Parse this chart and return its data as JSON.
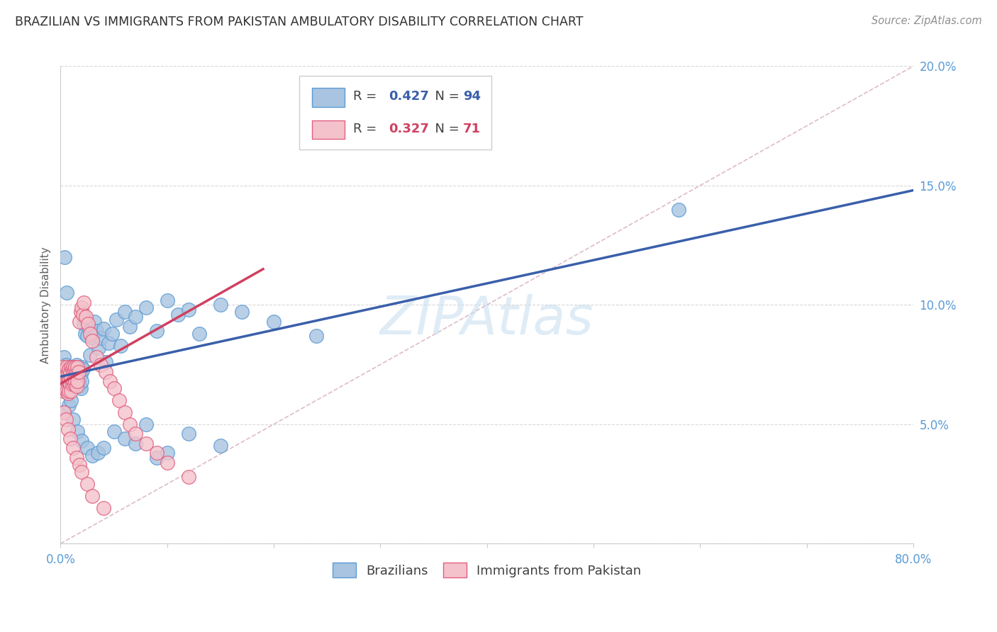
{
  "title": "BRAZILIAN VS IMMIGRANTS FROM PAKISTAN AMBULATORY DISABILITY CORRELATION CHART",
  "source": "Source: ZipAtlas.com",
  "ylabel": "Ambulatory Disability",
  "watermark": "ZIPAtlas",
  "xlim": [
    0.0,
    0.8
  ],
  "ylim": [
    0.0,
    0.2
  ],
  "yticks": [
    0.0,
    0.05,
    0.1,
    0.15,
    0.2
  ],
  "ytick_labels": [
    "",
    "5.0%",
    "10.0%",
    "15.0%",
    "20.0%"
  ],
  "xticks": [
    0.0,
    0.1,
    0.2,
    0.3,
    0.4,
    0.5,
    0.6,
    0.7,
    0.8
  ],
  "xtick_labels": [
    "0.0%",
    "",
    "",
    "",
    "",
    "",
    "",
    "",
    "80.0%"
  ],
  "blue_R": 0.427,
  "blue_N": 94,
  "pink_R": 0.327,
  "pink_N": 71,
  "blue_color": "#a8c4e0",
  "blue_edge": "#5b9bd5",
  "pink_color": "#f4c2cb",
  "pink_edge": "#e06080",
  "blue_line_color": "#3a5faa",
  "pink_line_color": "#d04060",
  "diag_color": "#ddbbcc",
  "title_color": "#303030",
  "axis_color": "#5b9bd5",
  "grid_color": "#d8d8d8",
  "blue_scatter_x": [
    0.002,
    0.003,
    0.003,
    0.004,
    0.004,
    0.005,
    0.005,
    0.005,
    0.006,
    0.006,
    0.006,
    0.007,
    0.007,
    0.007,
    0.008,
    0.008,
    0.008,
    0.009,
    0.009,
    0.01,
    0.01,
    0.01,
    0.011,
    0.011,
    0.012,
    0.012,
    0.013,
    0.013,
    0.014,
    0.014,
    0.015,
    0.015,
    0.016,
    0.016,
    0.017,
    0.017,
    0.018,
    0.018,
    0.019,
    0.019,
    0.02,
    0.02,
    0.021,
    0.022,
    0.023,
    0.024,
    0.025,
    0.026,
    0.028,
    0.03,
    0.032,
    0.034,
    0.036,
    0.038,
    0.04,
    0.042,
    0.045,
    0.048,
    0.052,
    0.056,
    0.06,
    0.065,
    0.07,
    0.08,
    0.09,
    0.1,
    0.11,
    0.12,
    0.13,
    0.15,
    0.17,
    0.2,
    0.24,
    0.003,
    0.008,
    0.012,
    0.016,
    0.02,
    0.025,
    0.03,
    0.035,
    0.04,
    0.05,
    0.06,
    0.07,
    0.08,
    0.09,
    0.1,
    0.12,
    0.15,
    0.58,
    0.004,
    0.006,
    0.01
  ],
  "blue_scatter_y": [
    0.074,
    0.078,
    0.071,
    0.069,
    0.072,
    0.075,
    0.068,
    0.065,
    0.073,
    0.07,
    0.066,
    0.074,
    0.068,
    0.063,
    0.072,
    0.067,
    0.071,
    0.069,
    0.065,
    0.074,
    0.07,
    0.066,
    0.072,
    0.068,
    0.073,
    0.069,
    0.074,
    0.068,
    0.072,
    0.066,
    0.075,
    0.069,
    0.073,
    0.067,
    0.074,
    0.068,
    0.072,
    0.066,
    0.071,
    0.065,
    0.074,
    0.068,
    0.073,
    0.092,
    0.088,
    0.094,
    0.087,
    0.091,
    0.079,
    0.086,
    0.093,
    0.089,
    0.082,
    0.086,
    0.09,
    0.076,
    0.084,
    0.088,
    0.094,
    0.083,
    0.097,
    0.091,
    0.095,
    0.099,
    0.089,
    0.102,
    0.096,
    0.098,
    0.088,
    0.1,
    0.097,
    0.093,
    0.087,
    0.055,
    0.058,
    0.052,
    0.047,
    0.043,
    0.04,
    0.037,
    0.038,
    0.04,
    0.047,
    0.044,
    0.042,
    0.05,
    0.036,
    0.038,
    0.046,
    0.041,
    0.14,
    0.12,
    0.105,
    0.06
  ],
  "pink_scatter_x": [
    0.002,
    0.002,
    0.003,
    0.003,
    0.003,
    0.004,
    0.004,
    0.004,
    0.005,
    0.005,
    0.005,
    0.006,
    0.006,
    0.006,
    0.007,
    0.007,
    0.007,
    0.008,
    0.008,
    0.008,
    0.009,
    0.009,
    0.01,
    0.01,
    0.01,
    0.011,
    0.011,
    0.012,
    0.012,
    0.013,
    0.013,
    0.014,
    0.014,
    0.015,
    0.015,
    0.016,
    0.016,
    0.017,
    0.018,
    0.019,
    0.02,
    0.021,
    0.022,
    0.024,
    0.026,
    0.028,
    0.03,
    0.034,
    0.038,
    0.042,
    0.046,
    0.05,
    0.055,
    0.06,
    0.065,
    0.07,
    0.08,
    0.09,
    0.1,
    0.12,
    0.003,
    0.005,
    0.007,
    0.009,
    0.012,
    0.015,
    0.018,
    0.02,
    0.025,
    0.03,
    0.04
  ],
  "pink_scatter_y": [
    0.074,
    0.069,
    0.072,
    0.067,
    0.064,
    0.071,
    0.068,
    0.065,
    0.073,
    0.07,
    0.066,
    0.074,
    0.068,
    0.064,
    0.072,
    0.068,
    0.063,
    0.073,
    0.068,
    0.064,
    0.072,
    0.067,
    0.074,
    0.069,
    0.064,
    0.073,
    0.067,
    0.074,
    0.068,
    0.073,
    0.067,
    0.074,
    0.068,
    0.072,
    0.066,
    0.074,
    0.068,
    0.072,
    0.093,
    0.097,
    0.099,
    0.096,
    0.101,
    0.095,
    0.092,
    0.088,
    0.085,
    0.078,
    0.075,
    0.072,
    0.068,
    0.065,
    0.06,
    0.055,
    0.05,
    0.046,
    0.042,
    0.038,
    0.034,
    0.028,
    0.055,
    0.052,
    0.048,
    0.044,
    0.04,
    0.036,
    0.033,
    0.03,
    0.025,
    0.02,
    0.015
  ],
  "blue_line_x": [
    0.0,
    0.8
  ],
  "blue_line_y": [
    0.07,
    0.148
  ],
  "pink_line_x": [
    0.0,
    0.19
  ],
  "pink_line_y": [
    0.067,
    0.115
  ]
}
